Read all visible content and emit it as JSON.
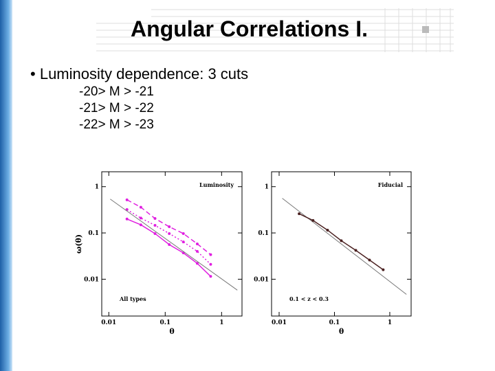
{
  "title": "Angular Correlations I.",
  "bullet": "Luminosity dependence: 3 cuts",
  "sub_items": [
    "-20> M > -21",
    "-21> M > -22",
    "-22> M > -23"
  ],
  "chart_data": [
    {
      "type": "line",
      "ylabel": "ω(θ)",
      "xlabel": "θ",
      "annotations": [
        "Luminosity",
        "All types"
      ],
      "xscale": "log",
      "yscale": "log",
      "xlim": [
        0.0075,
        2.3
      ],
      "ylim": [
        0.0016,
        2.1
      ],
      "xticks": [
        0.01,
        0.1,
        1
      ],
      "yticks": [
        0.01,
        0.1,
        1
      ],
      "x": [
        0.021,
        0.037,
        0.066,
        0.118,
        0.21,
        0.37,
        0.64
      ],
      "series": [
        {
          "color": "#e020e0",
          "style": "dashed",
          "markers": true,
          "values": [
            0.52,
            0.36,
            0.205,
            0.136,
            0.097,
            0.058,
            0.034
          ]
        },
        {
          "color": "#e020e0",
          "style": "dotted",
          "markers": true,
          "values": [
            0.32,
            0.21,
            0.146,
            0.097,
            0.064,
            0.04,
            0.021
          ]
        },
        {
          "color": "#e020e0",
          "style": "solid",
          "markers": true,
          "values": [
            0.2,
            0.15,
            0.097,
            0.056,
            0.037,
            0.022,
            0.0115
          ]
        },
        {
          "color": "#777777",
          "style": "solid",
          "markers": false,
          "x": [
            0.0106,
            1.9
          ],
          "values": [
            0.54,
            0.0058
          ]
        }
      ]
    },
    {
      "type": "line",
      "xlabel": "θ",
      "annotations": [
        "Fiducial",
        "0.1 < z < 0.3"
      ],
      "xscale": "log",
      "yscale": "log",
      "xlim": [
        0.0073,
        2.43
      ],
      "ylim": [
        0.0016,
        2.1
      ],
      "xticks": [
        0.01,
        0.1,
        1
      ],
      "yticks": [
        0.01,
        0.1,
        1
      ],
      "x": [
        0.023,
        0.041,
        0.075,
        0.133,
        0.243,
        0.43,
        0.76
      ],
      "series": [
        {
          "color": "#777777",
          "style": "solid",
          "markers": false,
          "x": [
            0.0114,
            2.0
          ],
          "values": [
            0.56,
            0.0047
          ]
        },
        {
          "color": "#4a2020",
          "style": "solid",
          "markers": true,
          "values": [
            0.26,
            0.186,
            0.115,
            0.068,
            0.042,
            0.026,
            0.016
          ]
        }
      ]
    }
  ]
}
